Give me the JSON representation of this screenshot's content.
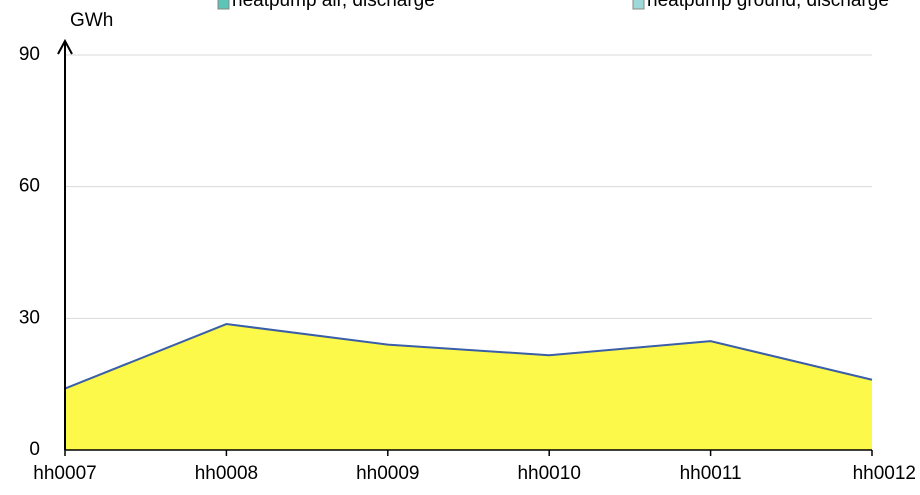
{
  "chart_data": {
    "type": "area",
    "y_axis_label": "GWh",
    "legend_items": [
      {
        "name": "heatpump air, discharge",
        "color": "#5fc4b8"
      },
      {
        "name": "heatpump ground, discharge",
        "color": "#9fd8d8"
      }
    ],
    "categories": [
      "hh0007",
      "hh0008",
      "hh0009",
      "hh0010",
      "hh0011",
      "hh0012"
    ],
    "series": [
      {
        "color": "#fcf94a",
        "line_color": "#3a5ea8",
        "values": [
          14,
          28.7,
          24,
          21.6,
          24.8,
          16
        ]
      }
    ],
    "ylim": [
      0,
      90
    ],
    "yticks": [
      0,
      30,
      60,
      90
    ],
    "grid": true
  }
}
